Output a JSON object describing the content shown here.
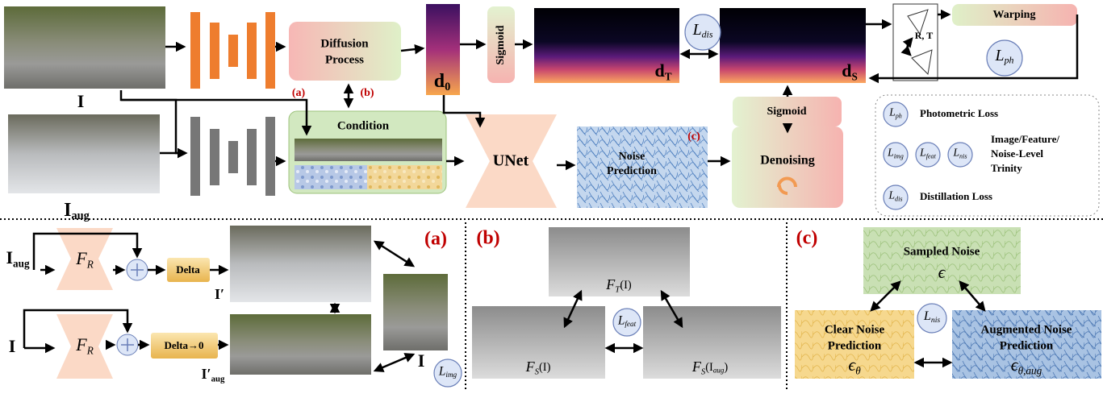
{
  "top": {
    "input_label": "I",
    "aug_label": {
      "main": "I",
      "sub": "aug"
    },
    "diffusion": [
      "Diffusion",
      "Process"
    ],
    "marker_a": "(a)",
    "marker_b": "(b)",
    "marker_c": "(c)",
    "d0": {
      "main": "d",
      "sub": "0"
    },
    "sigmoid_1": "Sigmoid",
    "dT": {
      "main": "d",
      "sub": "T"
    },
    "Ldis": {
      "main": "L",
      "sub": "dis"
    },
    "dS": {
      "main": "d",
      "sub": "S"
    },
    "rt": "R, T",
    "warping": "Warping",
    "Lph": {
      "main": "L",
      "sub": "ph"
    },
    "condition": "Condition",
    "unet": "UNet",
    "noise_prediction": [
      "Noise",
      "Prediction"
    ],
    "denoising": "Denoising",
    "sigmoid_2": "Sigmoid"
  },
  "legend": {
    "items": [
      {
        "symbols": [
          {
            "main": "L",
            "sub": "ph"
          }
        ],
        "text": [
          "Photometric Loss"
        ]
      },
      {
        "symbols": [
          {
            "main": "L",
            "sub": "img"
          },
          {
            "main": "L",
            "sub": "feat"
          },
          {
            "main": "L",
            "sub": "nis"
          }
        ],
        "text": [
          "Image/Feature/",
          "Noise-Level",
          "Trinity"
        ]
      },
      {
        "symbols": [
          {
            "main": "L",
            "sub": "dis"
          }
        ],
        "text": [
          "Distillation Loss"
        ]
      }
    ]
  },
  "panel_a": {
    "marker": "(a)",
    "input_aug": {
      "main": "I",
      "sub": "aug"
    },
    "fr_1": {
      "main": "F",
      "sub": "R"
    },
    "delta": "Delta",
    "output_1": "I′",
    "input": "I",
    "fr_2": {
      "main": "F",
      "sub": "R"
    },
    "delta_zero": "Delta→0",
    "output_2": {
      "main": "I′",
      "sub": "aug"
    },
    "reference": "I",
    "Limg": {
      "main": "L",
      "sub": "img"
    }
  },
  "panel_b": {
    "marker": "(b)",
    "teacher": {
      "main": "F",
      "sub": "T",
      "arg": "(I)"
    },
    "Lfeat": {
      "main": "L",
      "sub": "feat"
    },
    "student": {
      "main": "F",
      "sub": "S",
      "arg": "(I)"
    },
    "student_aug": {
      "main": "F",
      "sub": "S",
      "arg": "(I",
      "argsub": "aug",
      "close": ")"
    }
  },
  "panel_c": {
    "marker": "(c)",
    "sampled": [
      "Sampled Noise",
      "ϵ"
    ],
    "Lnis": {
      "main": "L",
      "sub": "nis"
    },
    "clear": [
      "Clear Noise",
      "Prediction",
      {
        "main": "ϵ",
        "sub": "θ"
      }
    ],
    "augmented": [
      "Augmented Noise",
      "Prediction",
      {
        "main": "ϵ",
        "sub": "θ,aug"
      }
    ]
  }
}
